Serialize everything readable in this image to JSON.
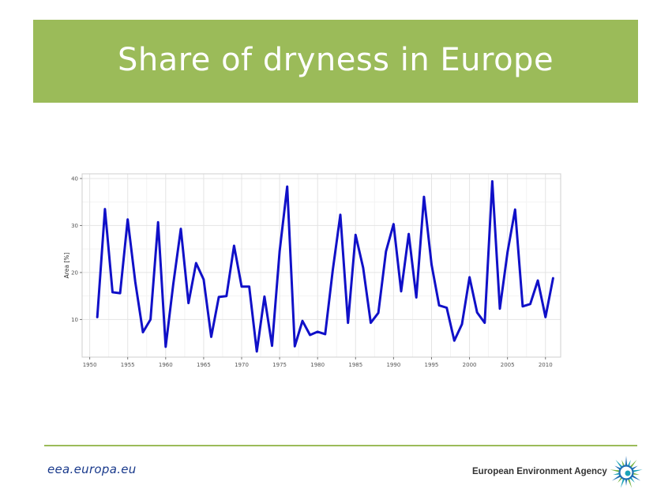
{
  "slide": {
    "title": "Share of dryness in Europe",
    "footer_url": "eea.europa.eu",
    "agency_name": "European Environment Agency"
  },
  "colors": {
    "title_band": "#9bbb59",
    "title_text": "#ffffff",
    "line": "#1010c8",
    "footer_rule": "#9bbb59",
    "footer_url": "#1a3a8c",
    "logo_blue": "#1f6fb4",
    "logo_teal": "#1aa3b8",
    "logo_green": "#7ab648"
  },
  "icons": {
    "logo": "eea-sunburst-logo"
  },
  "chart_data": {
    "type": "line",
    "title": "",
    "xlabel": "",
    "ylabel": "Area [%]",
    "xlim": [
      1949,
      2012
    ],
    "ylim": [
      2,
      41
    ],
    "xticks": [
      1950,
      1955,
      1960,
      1965,
      1970,
      1975,
      1980,
      1985,
      1990,
      1995,
      2000,
      2005,
      2010
    ],
    "yticks": [
      10,
      20,
      30,
      40
    ],
    "grid": true,
    "legend": "none",
    "x": [
      1951,
      1952,
      1953,
      1954,
      1955,
      1956,
      1957,
      1958,
      1959,
      1960,
      1961,
      1962,
      1963,
      1964,
      1965,
      1966,
      1967,
      1968,
      1969,
      1970,
      1971,
      1972,
      1973,
      1974,
      1975,
      1976,
      1977,
      1978,
      1979,
      1980,
      1981,
      1982,
      1983,
      1984,
      1985,
      1986,
      1987,
      1988,
      1989,
      1990,
      1991,
      1992,
      1993,
      1994,
      1995,
      1996,
      1997,
      1998,
      1999,
      2000,
      2001,
      2002,
      2003,
      2004,
      2005,
      2006,
      2007,
      2008,
      2009,
      2010,
      2011
    ],
    "series": [
      {
        "values": [
          10.5,
          33.5,
          15.8,
          15.6,
          31.3,
          18.0,
          7.3,
          10.0,
          30.7,
          4.2,
          17.5,
          29.3,
          13.5,
          22.0,
          18.5,
          6.3,
          14.8,
          15.0,
          25.7,
          17.0,
          17.0,
          3.2,
          14.9,
          4.4,
          24.5,
          38.3,
          4.3,
          9.7,
          6.7,
          7.4,
          6.9,
          20.5,
          32.3,
          9.3,
          28.0,
          21.0,
          9.3,
          11.4,
          24.5,
          30.3,
          16.0,
          28.2,
          14.7,
          36.1,
          21.7,
          13.0,
          12.5,
          5.5,
          9.0,
          19.0,
          11.5,
          9.3,
          39.4,
          12.3,
          24.3,
          33.4,
          12.8,
          13.3,
          18.3,
          10.5,
          18.8
        ]
      }
    ]
  }
}
